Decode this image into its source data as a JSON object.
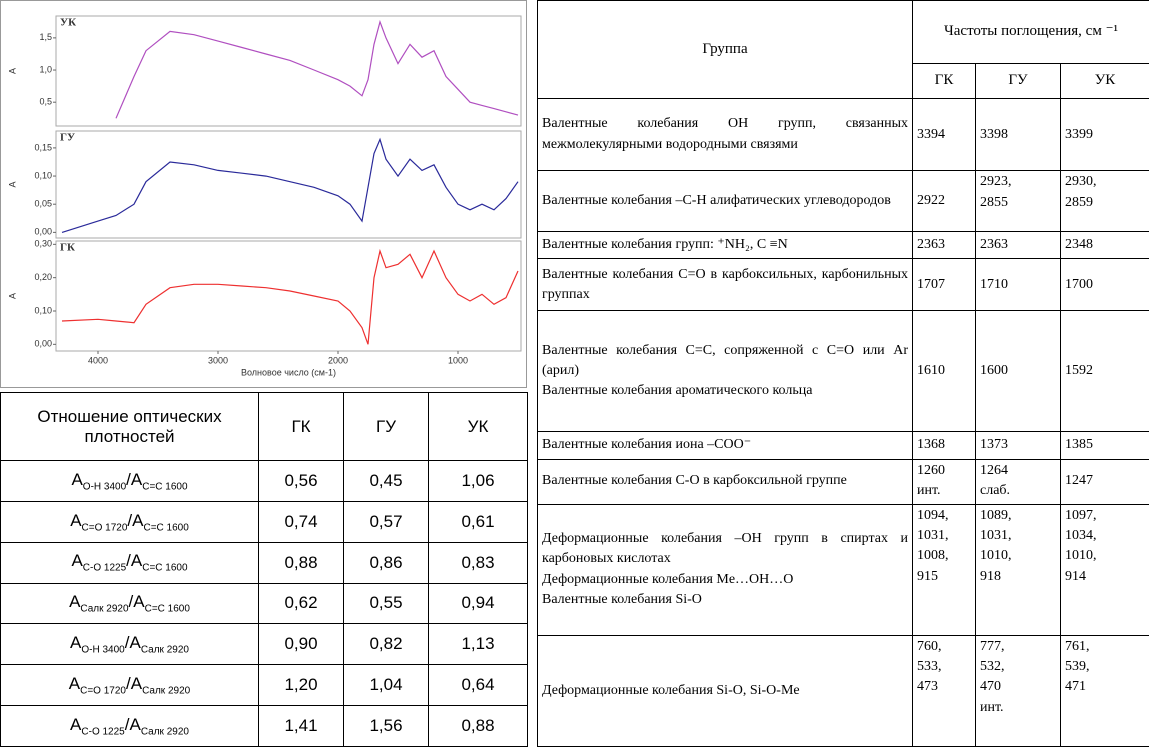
{
  "chart_data": [
    {
      "type": "line",
      "title": "УК",
      "ylabel": "A",
      "x": [
        4300,
        4000,
        3850,
        3700,
        3600,
        3400,
        3200,
        3000,
        2800,
        2600,
        2400,
        2200,
        2000,
        1900,
        1800,
        1750,
        1700,
        1650,
        1600,
        1500,
        1400,
        1300,
        1200,
        1100,
        1000,
        900,
        800,
        700,
        600,
        500
      ],
      "xlim": [
        4350,
        475
      ],
      "ylim": [
        0.13,
        1.84
      ],
      "yticks": [
        {
          "value": 0.5,
          "label": "0,5"
        },
        {
          "value": 1,
          "label": "1,0"
        },
        {
          "value": 1.5,
          "label": "1,5"
        }
      ],
      "series": [
        {
          "color": "#b04fc0",
          "values": [
            null,
            null,
            0.25,
            0.9,
            1.3,
            1.6,
            1.55,
            1.45,
            1.35,
            1.25,
            1.15,
            1.0,
            0.85,
            0.75,
            0.6,
            0.85,
            1.4,
            1.75,
            1.5,
            1.1,
            1.4,
            1.2,
            1.3,
            0.9,
            0.7,
            0.5,
            0.45,
            0.4,
            0.35,
            0.3
          ]
        }
      ]
    },
    {
      "type": "line",
      "title": "ГУ",
      "ylabel": "A",
      "x": [
        4300,
        4000,
        3850,
        3700,
        3600,
        3400,
        3200,
        3000,
        2800,
        2600,
        2400,
        2200,
        2000,
        1900,
        1800,
        1750,
        1700,
        1650,
        1600,
        1500,
        1400,
        1300,
        1200,
        1100,
        1000,
        900,
        800,
        700,
        600,
        500
      ],
      "xlim": [
        4350,
        475
      ],
      "ylim": [
        -0.01,
        0.18
      ],
      "yticks": [
        {
          "value": 0,
          "label": "0,00"
        },
        {
          "value": 0.05,
          "label": "0,05"
        },
        {
          "value": 0.1,
          "label": "0,10"
        },
        {
          "value": 0.15,
          "label": "0,15"
        }
      ],
      "series": [
        {
          "color": "#2a2a9a",
          "values": [
            0.0,
            0.02,
            0.03,
            0.05,
            0.09,
            0.125,
            0.12,
            0.11,
            0.105,
            0.1,
            0.09,
            0.08,
            0.065,
            0.05,
            0.02,
            0.08,
            0.14,
            0.165,
            0.13,
            0.1,
            0.13,
            0.11,
            0.12,
            0.08,
            0.05,
            0.04,
            0.05,
            0.04,
            0.06,
            0.09
          ]
        }
      ]
    },
    {
      "type": "line",
      "title": "ГК",
      "ylabel": "A",
      "xlabel": "Волновое число (см-1)",
      "x": [
        4300,
        4000,
        3850,
        3700,
        3600,
        3400,
        3200,
        3000,
        2800,
        2600,
        2400,
        2200,
        2000,
        1900,
        1800,
        1750,
        1700,
        1650,
        1600,
        1500,
        1400,
        1300,
        1200,
        1100,
        1000,
        900,
        800,
        700,
        600,
        500
      ],
      "xlim": [
        4350,
        475
      ],
      "ylim": [
        -0.02,
        0.31
      ],
      "xticks": [
        4000,
        3000,
        2000,
        1000
      ],
      "yticks": [
        {
          "value": 0,
          "label": "0,00"
        },
        {
          "value": 0.1,
          "label": "0,10"
        },
        {
          "value": 0.2,
          "label": "0,20"
        },
        {
          "value": 0.3,
          "label": "0,30"
        }
      ],
      "series": [
        {
          "color": "#ee3030",
          "values": [
            0.07,
            0.075,
            0.07,
            0.065,
            0.12,
            0.17,
            0.18,
            0.18,
            0.175,
            0.17,
            0.16,
            0.145,
            0.13,
            0.1,
            0.05,
            0.0,
            0.2,
            0.28,
            0.23,
            0.24,
            0.27,
            0.2,
            0.28,
            0.2,
            0.15,
            0.13,
            0.15,
            0.12,
            0.14,
            0.22
          ]
        }
      ]
    }
  ],
  "ratio_table": {
    "header": [
      "Отношение оптических плотностей",
      "ГК",
      "ГУ",
      "УК"
    ],
    "rows": [
      {
        "label": [
          "A",
          "O-H 3400",
          "/A",
          "C=C 1600"
        ],
        "values": [
          "0,56",
          "0,45",
          "1,06"
        ]
      },
      {
        "label": [
          "A",
          "C=O 1720",
          "/A",
          "C=C 1600"
        ],
        "values": [
          "0,74",
          "0,57",
          "0,61"
        ]
      },
      {
        "label": [
          "A",
          "C-O 1225",
          "/A",
          "C=C 1600"
        ],
        "values": [
          "0,88",
          "0,86",
          "0,83"
        ]
      },
      {
        "label": [
          "A",
          "Салк 2920",
          "/A",
          "C=C 1600"
        ],
        "values": [
          "0,62",
          "0,55",
          "0,94"
        ]
      },
      {
        "label": [
          "A",
          "O-H 3400",
          "/A",
          "Салк 2920"
        ],
        "values": [
          "0,90",
          "0,82",
          "1,13"
        ]
      },
      {
        "label": [
          "A",
          "C=O 1720",
          "/A",
          "Салк 2920"
        ],
        "values": [
          "1,20",
          "1,04",
          "0,64"
        ]
      },
      {
        "label": [
          "A",
          "C-O 1225",
          "/A",
          "Салк 2920"
        ],
        "values": [
          "1,41",
          "1,56",
          "0,88"
        ]
      }
    ]
  },
  "freq_table": {
    "header": {
      "group": "Группа",
      "freq": "Частоты поглощения, см ⁻¹",
      "cols": [
        "ГК",
        "ГУ",
        "УК"
      ]
    },
    "rows": [
      {
        "group": "Валентные колебания ОН групп, связанных межмолекулярными водородными связями",
        "values": [
          "3394",
          "3398",
          "3399"
        ]
      },
      {
        "group": "Валентные колебания –С-Н алифатических углеводородов",
        "values": [
          "2922",
          "2923,\n2855",
          "2930,\n2859"
        ]
      },
      {
        "group": "Валентные колебания групп: ⁺NH₂, C ≡N",
        "values": [
          "2363",
          "2363",
          "2348"
        ]
      },
      {
        "group": "Валентные колебания С=О в карбоксильных, карбонильных группах",
        "values": [
          "1707",
          "1710",
          "1700"
        ]
      },
      {
        "group": "Валентные колебания С=С, сопряженной с С=О или Ar (арил)\nВалентные колебания ароматического кольца",
        "values": [
          "1610",
          "1600",
          "1592"
        ]
      },
      {
        "group": "Валентные колебания иона –СОО⁻",
        "values": [
          "1368",
          "1373",
          "1385"
        ]
      },
      {
        "group": "Валентные колебания С-О в карбоксильной группе",
        "values": [
          "1260\nинт.",
          "1264\nслаб.",
          "1247"
        ]
      },
      {
        "group": "Деформационные колебания –ОН групп в спиртах и карбоновых кислотах\nДеформационные колебания Me…OH…O\nВалентные колебания Si-O",
        "values": [
          "1094,\n1031,\n1008,\n915",
          "1089,\n1031,\n1010,\n918",
          "1097,\n1034,\n1010,\n914"
        ]
      },
      {
        "group": "Деформационные колебания Si-O, Si-O-Me",
        "values": [
          "760,\n533,\n473",
          "777,\n532,\n470\nинт.",
          "761,\n539,\n471"
        ]
      }
    ]
  }
}
